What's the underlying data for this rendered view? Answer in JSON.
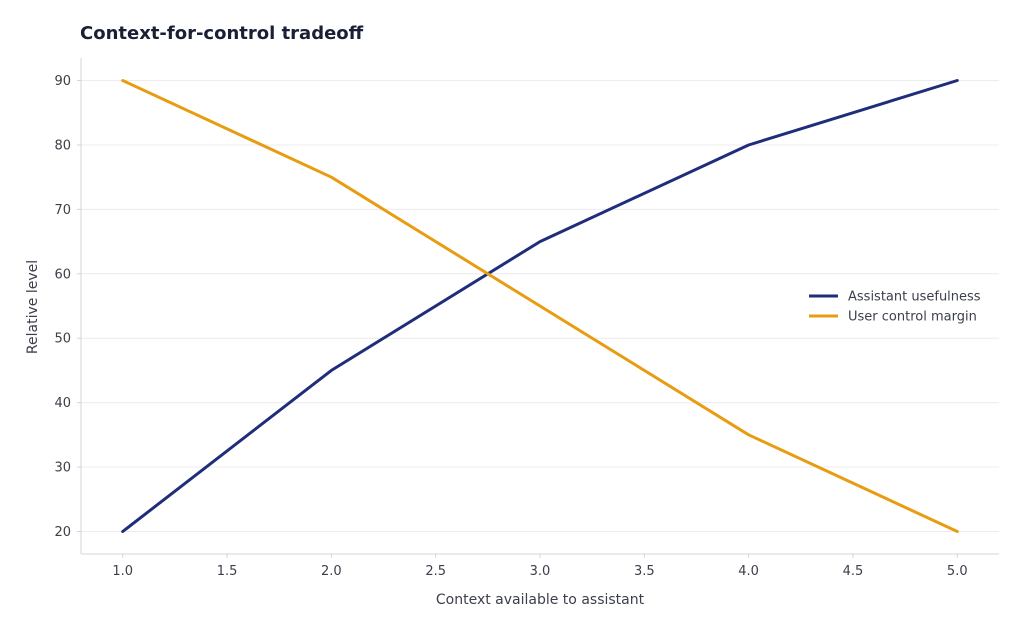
{
  "chart_data": {
    "type": "line",
    "title": "Context-for-control tradeoff",
    "xlabel": "Context available to assistant",
    "ylabel": "Relative level",
    "xlim": [
      0.8,
      5.2
    ],
    "ylim": [
      16.5,
      93.5
    ],
    "xticks": [
      "1.0",
      "1.5",
      "2.0",
      "2.5",
      "3.0",
      "3.5",
      "4.0",
      "4.5",
      "5.0"
    ],
    "yticks": [
      "20",
      "30",
      "40",
      "50",
      "60",
      "70",
      "80",
      "90"
    ],
    "grid": true,
    "legend_position": "center-right",
    "series": [
      {
        "name": "Assistant usefulness",
        "color": "#1f2d7a",
        "x": [
          1,
          2,
          3,
          4,
          5
        ],
        "y": [
          20,
          45,
          65,
          80,
          90
        ]
      },
      {
        "name": "User control margin",
        "color": "#e89c12",
        "x": [
          1,
          2,
          3,
          4,
          5
        ],
        "y": [
          90,
          75,
          55,
          35,
          20
        ]
      }
    ]
  }
}
